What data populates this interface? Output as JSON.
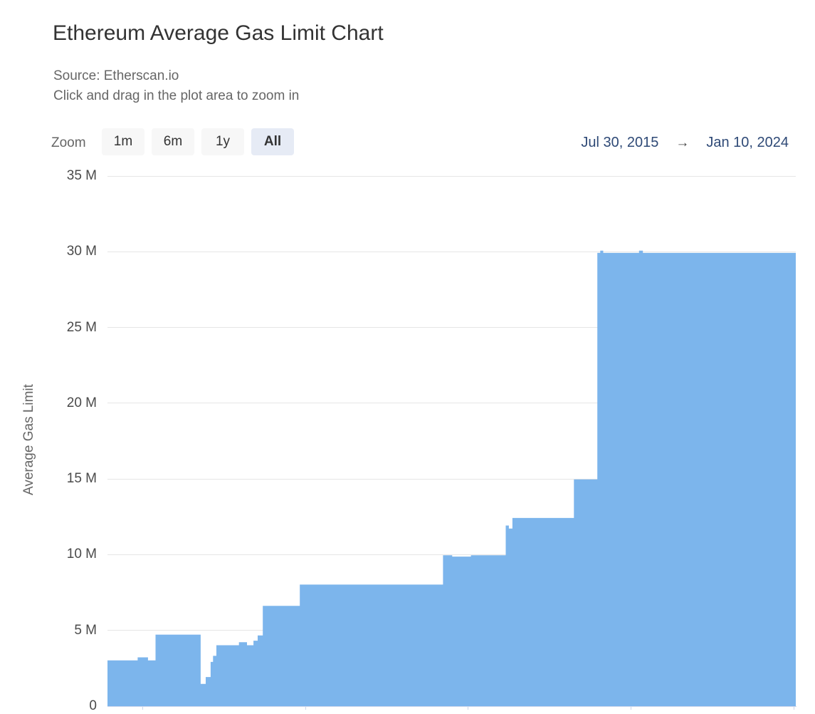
{
  "header": {
    "title": "Ethereum Average Gas Limit Chart",
    "subtitle_source": "Source: Etherscan.io",
    "subtitle_hint": "Click and drag in the plot area to zoom in"
  },
  "range_selector": {
    "zoom_label": "Zoom",
    "buttons": [
      {
        "label": "1m",
        "selected": false
      },
      {
        "label": "6m",
        "selected": false
      },
      {
        "label": "1y",
        "selected": false
      },
      {
        "label": "All",
        "selected": true
      }
    ],
    "date_from": "Jul 30, 2015",
    "arrow": "→",
    "date_to": "Jan 10, 2024"
  },
  "colors": {
    "series_fill": "#7cb5ec",
    "grid": "#e6e6e6",
    "axis_line": "#ccd6eb",
    "title_text": "#333333",
    "muted_text": "#666666",
    "tick_text": "#4a4a4a",
    "date_text": "#2e4976",
    "button_bg": "#f7f7f7",
    "button_selected_bg": "#e6ebf5"
  },
  "chart_data": {
    "type": "area",
    "step": true,
    "title": "Ethereum Average Gas Limit Chart",
    "ylabel": "Average Gas Limit",
    "unit": "million gas",
    "ylim": [
      0,
      35
    ],
    "ytick_values": [
      0,
      5,
      10,
      15,
      20,
      25,
      30,
      35
    ],
    "yticks": [
      "0",
      "5 M",
      "10 M",
      "15 M",
      "20 M",
      "25 M",
      "30 M",
      "35 M"
    ],
    "x_range": [
      "2015-07-30",
      "2024-01-10"
    ],
    "x_tick_dates": [
      "2016-01-01",
      "2018-01-01",
      "2020-01-01",
      "2022-01-01",
      "2024-01-01"
    ],
    "x_tick_labels_visible": false,
    "grid": true,
    "legend": "none",
    "series": [
      {
        "name": "Average Gas Limit",
        "color": "#7cb5ec",
        "points": [
          {
            "date": "2015-07-30",
            "value": 3.0
          },
          {
            "date": "2015-12-14",
            "value": 3.2
          },
          {
            "date": "2016-01-26",
            "value": 3.0
          },
          {
            "date": "2016-03-03",
            "value": 4.7
          },
          {
            "date": "2016-09-18",
            "value": 1.45
          },
          {
            "date": "2016-10-14",
            "value": 1.9
          },
          {
            "date": "2016-11-05",
            "value": 2.9
          },
          {
            "date": "2016-11-16",
            "value": 3.3
          },
          {
            "date": "2016-12-01",
            "value": 4.0
          },
          {
            "date": "2017-03-12",
            "value": 4.2
          },
          {
            "date": "2017-04-14",
            "value": 4.0
          },
          {
            "date": "2017-05-16",
            "value": 4.3
          },
          {
            "date": "2017-06-04",
            "value": 4.65
          },
          {
            "date": "2017-06-27",
            "value": 6.6
          },
          {
            "date": "2017-12-10",
            "value": 8.0
          },
          {
            "date": "2019-09-13",
            "value": 9.94
          },
          {
            "date": "2019-10-21",
            "value": 9.85
          },
          {
            "date": "2020-01-16",
            "value": 9.94
          },
          {
            "date": "2020-06-20",
            "value": 11.9
          },
          {
            "date": "2020-07-01",
            "value": 11.7
          },
          {
            "date": "2020-07-20",
            "value": 12.4
          },
          {
            "date": "2021-04-22",
            "value": 14.95
          },
          {
            "date": "2021-08-05",
            "value": 29.9
          },
          {
            "date": "2021-08-18",
            "value": 30.05
          },
          {
            "date": "2021-08-28",
            "value": 29.9
          },
          {
            "date": "2022-02-08",
            "value": 30.05
          },
          {
            "date": "2022-02-22",
            "value": 29.9
          },
          {
            "date": "2024-01-10",
            "value": 29.9
          }
        ]
      }
    ]
  }
}
